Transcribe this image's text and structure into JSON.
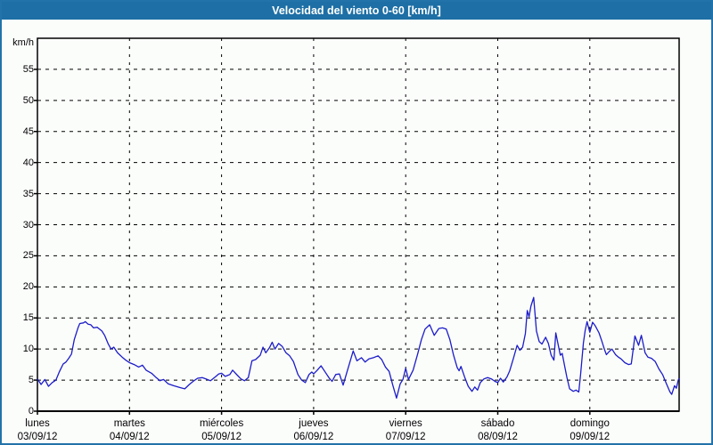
{
  "window": {
    "title": "Velocidad del viento 0-60 [km/h]"
  },
  "colors": {
    "title_bar_bg": "#1d6fa5",
    "title_text": "#ffffff",
    "frame_border": "#2273a9",
    "page_bg": "#fbfdfb",
    "plot_frame": "#000000",
    "grid": "#000000",
    "line": "#1c1cc8",
    "label_text": "#000000"
  },
  "y_axis": {
    "unit_label": "km/h",
    "ticks": [
      0,
      5,
      10,
      15,
      20,
      25,
      30,
      35,
      40,
      45,
      50,
      55
    ],
    "max": 60
  },
  "x_axis": {
    "days": [
      {
        "name": "lunes",
        "date": "03/09/12"
      },
      {
        "name": "martes",
        "date": "04/09/12"
      },
      {
        "name": "miércoles",
        "date": "05/09/12"
      },
      {
        "name": "jueves",
        "date": "06/09/12"
      },
      {
        "name": "viernes",
        "date": "07/09/12"
      },
      {
        "name": "sábado",
        "date": "08/09/12"
      },
      {
        "name": "domingo",
        "date": "09/09/12"
      }
    ]
  },
  "chart_data": {
    "type": "line",
    "title": "Velocidad del viento 0-60 [km/h]",
    "xlabel": "",
    "ylabel": "km/h",
    "ylim": [
      0,
      60
    ],
    "xlim_days": [
      0,
      6.97
    ],
    "grid": "dashed",
    "legend": "none",
    "x_unit": "days since lunes 03/09/12 00:00",
    "series": [
      {
        "name": "velocidad del viento",
        "unit": "km/h",
        "points": [
          [
            0.0,
            5.2
          ],
          [
            0.04,
            4.3
          ],
          [
            0.08,
            5.1
          ],
          [
            0.12,
            4.0
          ],
          [
            0.16,
            4.6
          ],
          [
            0.2,
            5.0
          ],
          [
            0.24,
            6.4
          ],
          [
            0.28,
            7.6
          ],
          [
            0.31,
            7.9
          ],
          [
            0.34,
            8.5
          ],
          [
            0.37,
            9.2
          ],
          [
            0.4,
            11.5
          ],
          [
            0.44,
            13.4
          ],
          [
            0.46,
            14.1
          ],
          [
            0.5,
            14.2
          ],
          [
            0.52,
            14.4
          ],
          [
            0.55,
            14.0
          ],
          [
            0.58,
            13.9
          ],
          [
            0.61,
            13.4
          ],
          [
            0.65,
            13.5
          ],
          [
            0.7,
            12.9
          ],
          [
            0.73,
            12.2
          ],
          [
            0.77,
            10.8
          ],
          [
            0.8,
            10.0
          ],
          [
            0.83,
            10.3
          ],
          [
            0.87,
            9.4
          ],
          [
            0.92,
            8.7
          ],
          [
            0.96,
            8.2
          ],
          [
            1.0,
            7.8
          ],
          [
            1.05,
            7.5
          ],
          [
            1.1,
            7.1
          ],
          [
            1.14,
            7.4
          ],
          [
            1.18,
            6.6
          ],
          [
            1.24,
            6.1
          ],
          [
            1.29,
            5.4
          ],
          [
            1.33,
            4.9
          ],
          [
            1.37,
            5.1
          ],
          [
            1.42,
            4.4
          ],
          [
            1.48,
            4.1
          ],
          [
            1.55,
            3.8
          ],
          [
            1.6,
            3.6
          ],
          [
            1.65,
            4.3
          ],
          [
            1.7,
            4.9
          ],
          [
            1.74,
            5.3
          ],
          [
            1.79,
            5.4
          ],
          [
            1.83,
            5.2
          ],
          [
            1.88,
            4.9
          ],
          [
            1.93,
            5.5
          ],
          [
            1.97,
            6.0
          ],
          [
            2.0,
            6.1
          ],
          [
            2.04,
            5.6
          ],
          [
            2.09,
            5.9
          ],
          [
            2.12,
            6.6
          ],
          [
            2.17,
            5.8
          ],
          [
            2.21,
            5.2
          ],
          [
            2.25,
            4.9
          ],
          [
            2.29,
            5.4
          ],
          [
            2.33,
            8.1
          ],
          [
            2.37,
            8.3
          ],
          [
            2.42,
            9.0
          ],
          [
            2.45,
            10.3
          ],
          [
            2.48,
            9.4
          ],
          [
            2.52,
            10.2
          ],
          [
            2.55,
            11.1
          ],
          [
            2.58,
            10.0
          ],
          [
            2.62,
            10.9
          ],
          [
            2.66,
            10.4
          ],
          [
            2.7,
            9.4
          ],
          [
            2.74,
            8.9
          ],
          [
            2.78,
            8.0
          ],
          [
            2.83,
            5.9
          ],
          [
            2.87,
            5.0
          ],
          [
            2.91,
            4.6
          ],
          [
            2.95,
            5.9
          ],
          [
            2.98,
            6.3
          ],
          [
            3.0,
            6.0
          ],
          [
            3.04,
            6.6
          ],
          [
            3.08,
            7.3
          ],
          [
            3.13,
            6.2
          ],
          [
            3.17,
            5.3
          ],
          [
            3.2,
            4.8
          ],
          [
            3.24,
            5.9
          ],
          [
            3.28,
            6.0
          ],
          [
            3.32,
            4.2
          ],
          [
            3.36,
            6.2
          ],
          [
            3.43,
            9.7
          ],
          [
            3.47,
            8.1
          ],
          [
            3.52,
            8.6
          ],
          [
            3.56,
            7.9
          ],
          [
            3.6,
            8.4
          ],
          [
            3.65,
            8.6
          ],
          [
            3.7,
            8.9
          ],
          [
            3.74,
            8.3
          ],
          [
            3.78,
            7.1
          ],
          [
            3.82,
            6.4
          ],
          [
            3.86,
            4.2
          ],
          [
            3.9,
            2.1
          ],
          [
            3.94,
            4.4
          ],
          [
            3.97,
            5.1
          ],
          [
            4.0,
            6.9
          ],
          [
            4.03,
            5.1
          ],
          [
            4.08,
            6.6
          ],
          [
            4.13,
            9.2
          ],
          [
            4.17,
            11.5
          ],
          [
            4.21,
            13.2
          ],
          [
            4.26,
            13.9
          ],
          [
            4.31,
            12.2
          ],
          [
            4.36,
            13.3
          ],
          [
            4.4,
            13.4
          ],
          [
            4.44,
            13.2
          ],
          [
            4.48,
            11.5
          ],
          [
            4.52,
            9.0
          ],
          [
            4.56,
            7.0
          ],
          [
            4.58,
            6.5
          ],
          [
            4.6,
            7.2
          ],
          [
            4.64,
            5.5
          ],
          [
            4.68,
            4.0
          ],
          [
            4.72,
            3.2
          ],
          [
            4.75,
            3.9
          ],
          [
            4.78,
            3.4
          ],
          [
            4.81,
            4.6
          ],
          [
            4.85,
            5.2
          ],
          [
            4.89,
            5.4
          ],
          [
            4.93,
            5.2
          ],
          [
            4.97,
            4.8
          ],
          [
            5.0,
            4.6
          ],
          [
            5.03,
            5.3
          ],
          [
            5.06,
            4.7
          ],
          [
            5.1,
            5.5
          ],
          [
            5.13,
            6.5
          ],
          [
            5.17,
            8.5
          ],
          [
            5.21,
            10.6
          ],
          [
            5.24,
            9.8
          ],
          [
            5.27,
            10.3
          ],
          [
            5.3,
            12.5
          ],
          [
            5.32,
            16.2
          ],
          [
            5.34,
            15.2
          ],
          [
            5.36,
            16.9
          ],
          [
            5.39,
            18.3
          ],
          [
            5.42,
            12.9
          ],
          [
            5.45,
            11.2
          ],
          [
            5.48,
            10.8
          ],
          [
            5.52,
            11.9
          ],
          [
            5.55,
            10.9
          ],
          [
            5.58,
            9.0
          ],
          [
            5.61,
            8.2
          ],
          [
            5.63,
            12.6
          ],
          [
            5.66,
            10.4
          ],
          [
            5.68,
            9.0
          ],
          [
            5.7,
            9.3
          ],
          [
            5.73,
            7.0
          ],
          [
            5.75,
            5.5
          ],
          [
            5.78,
            3.6
          ],
          [
            5.82,
            3.2
          ],
          [
            5.85,
            3.4
          ],
          [
            5.88,
            3.1
          ],
          [
            5.9,
            6.0
          ],
          [
            5.93,
            11.0
          ],
          [
            5.95,
            13.0
          ],
          [
            5.97,
            14.4
          ],
          [
            6.0,
            12.7
          ],
          [
            6.03,
            14.3
          ],
          [
            6.06,
            13.7
          ],
          [
            6.1,
            12.6
          ],
          [
            6.13,
            11.3
          ],
          [
            6.16,
            9.9
          ],
          [
            6.18,
            9.1
          ],
          [
            6.21,
            9.6
          ],
          [
            6.24,
            10.0
          ],
          [
            6.28,
            9.1
          ],
          [
            6.31,
            8.7
          ],
          [
            6.34,
            8.4
          ],
          [
            6.38,
            7.8
          ],
          [
            6.42,
            7.5
          ],
          [
            6.45,
            7.6
          ],
          [
            6.49,
            12.1
          ],
          [
            6.53,
            10.6
          ],
          [
            6.56,
            12.2
          ],
          [
            6.6,
            9.4
          ],
          [
            6.63,
            8.7
          ],
          [
            6.67,
            8.5
          ],
          [
            6.71,
            8.0
          ],
          [
            6.75,
            6.8
          ],
          [
            6.79,
            5.9
          ],
          [
            6.83,
            4.5
          ],
          [
            6.87,
            3.1
          ],
          [
            6.89,
            2.7
          ],
          [
            6.92,
            4.1
          ],
          [
            6.94,
            3.7
          ],
          [
            6.96,
            5.0
          ],
          [
            6.97,
            5.3
          ]
        ]
      }
    ]
  }
}
